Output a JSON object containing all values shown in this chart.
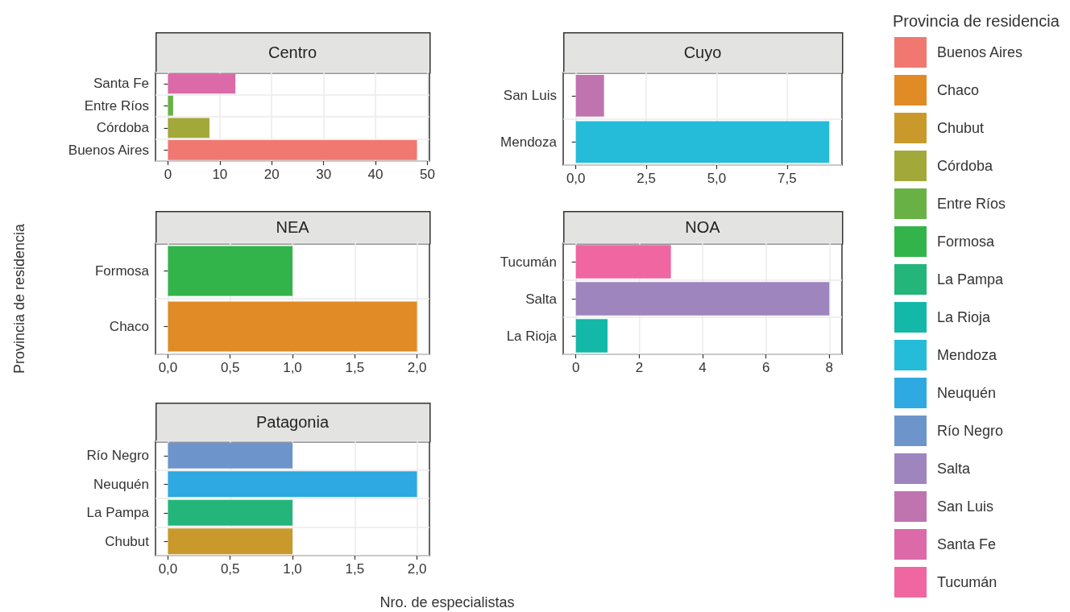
{
  "chart_data": [
    {
      "type": "bar",
      "orientation": "horizontal",
      "stacked": true,
      "title": "Centro",
      "categories": [
        "Santa Fe",
        "Entre Ríos",
        "Córdoba",
        "Buenos Aires"
      ],
      "series": [
        {
          "name": "Santa Fe",
          "color": "#dc6aa8",
          "values": [
            13,
            null,
            null,
            null
          ]
        },
        {
          "name": "Entre Ríos",
          "color": "#68b245",
          "values": [
            null,
            1,
            null,
            null
          ]
        },
        {
          "name": "Córdoba",
          "color": "#a3a83a",
          "values": [
            null,
            null,
            8,
            null
          ]
        },
        {
          "name": "Buenos Aires",
          "color": "#f07870",
          "values": [
            null,
            null,
            null,
            48
          ]
        }
      ],
      "xlim": [
        -2.4,
        50.4
      ],
      "xticks": [
        0,
        10,
        20,
        30,
        40,
        50
      ],
      "grid": true,
      "legend": "right",
      "legend_title": "Provincia de residencia"
    },
    {
      "type": "bar",
      "orientation": "horizontal",
      "stacked": true,
      "title": "Cuyo",
      "categories": [
        "San Luis",
        "Mendoza"
      ],
      "series": [
        {
          "name": "San Luis",
          "color": "#bf74af",
          "values": [
            1,
            null
          ]
        },
        {
          "name": "Mendoza",
          "color": "#24bcd8",
          "values": [
            null,
            9
          ]
        }
      ],
      "xlim": [
        -0.45,
        9.45
      ],
      "xticks": [
        {
          "value": 0,
          "label": "0,0"
        },
        {
          "value": 2.5,
          "label": "2,5"
        },
        {
          "value": 5,
          "label": "5,0"
        },
        {
          "value": 7.5,
          "label": "7,5"
        }
      ],
      "grid": true,
      "legend": "right"
    },
    {
      "type": "bar",
      "orientation": "horizontal",
      "stacked": true,
      "title": "NEA",
      "ylabel": "Provincia de residencia",
      "categories": [
        "Formosa",
        "Chaco"
      ],
      "series": [
        {
          "name": "Formosa",
          "color": "#33b44a",
          "values": [
            1,
            null
          ]
        },
        {
          "name": "Chaco",
          "color": "#e08b25",
          "values": [
            null,
            2
          ]
        }
      ],
      "xlim": [
        -0.1,
        2.1
      ],
      "xticks": [
        {
          "value": 0,
          "label": "0,0"
        },
        {
          "value": 0.5,
          "label": "0,5"
        },
        {
          "value": 1,
          "label": "1,0"
        },
        {
          "value": 1.5,
          "label": "1,5"
        },
        {
          "value": 2,
          "label": "2,0"
        }
      ],
      "grid": true,
      "legend": "right"
    },
    {
      "type": "bar",
      "orientation": "horizontal",
      "stacked": true,
      "title": "NOA",
      "categories": [
        "Tucumán",
        "Salta",
        "La Rioja"
      ],
      "series": [
        {
          "name": "Tucumán",
          "color": "#f066a1",
          "values": [
            3,
            null,
            null
          ]
        },
        {
          "name": "Salta",
          "color": "#9e85be",
          "values": [
            null,
            8,
            null
          ]
        },
        {
          "name": "La Rioja",
          "color": "#13b8a9",
          "values": [
            null,
            null,
            1
          ]
        }
      ],
      "xlim": [
        -0.4,
        8.4
      ],
      "xticks": [
        0,
        2,
        4,
        6,
        8
      ],
      "grid": true,
      "legend": "right"
    },
    {
      "type": "bar",
      "orientation": "horizontal",
      "stacked": true,
      "title": "Patagonia",
      "xlabel": "Nro. de especialistas",
      "categories": [
        "Río Negro",
        "Neuquén",
        "La Pampa",
        "Chubut"
      ],
      "series": [
        {
          "name": "Río Negro",
          "color": "#6d95cc",
          "values": [
            1,
            null,
            null,
            null
          ]
        },
        {
          "name": "Neuquén",
          "color": "#2ea9e1",
          "values": [
            null,
            2,
            null,
            null
          ]
        },
        {
          "name": "La Pampa",
          "color": "#24b57a",
          "values": [
            null,
            null,
            1,
            null
          ]
        },
        {
          "name": "Chubut",
          "color": "#c9992b",
          "values": [
            null,
            null,
            null,
            1
          ]
        }
      ],
      "xlim": [
        -0.1,
        2.1
      ],
      "xticks": [
        {
          "value": 0,
          "label": "0,0"
        },
        {
          "value": 0.5,
          "label": "0,5"
        },
        {
          "value": 1,
          "label": "1,0"
        },
        {
          "value": 1.5,
          "label": "1,5"
        },
        {
          "value": 2,
          "label": "2,0"
        }
      ],
      "grid": true,
      "legend": "right"
    }
  ]
}
